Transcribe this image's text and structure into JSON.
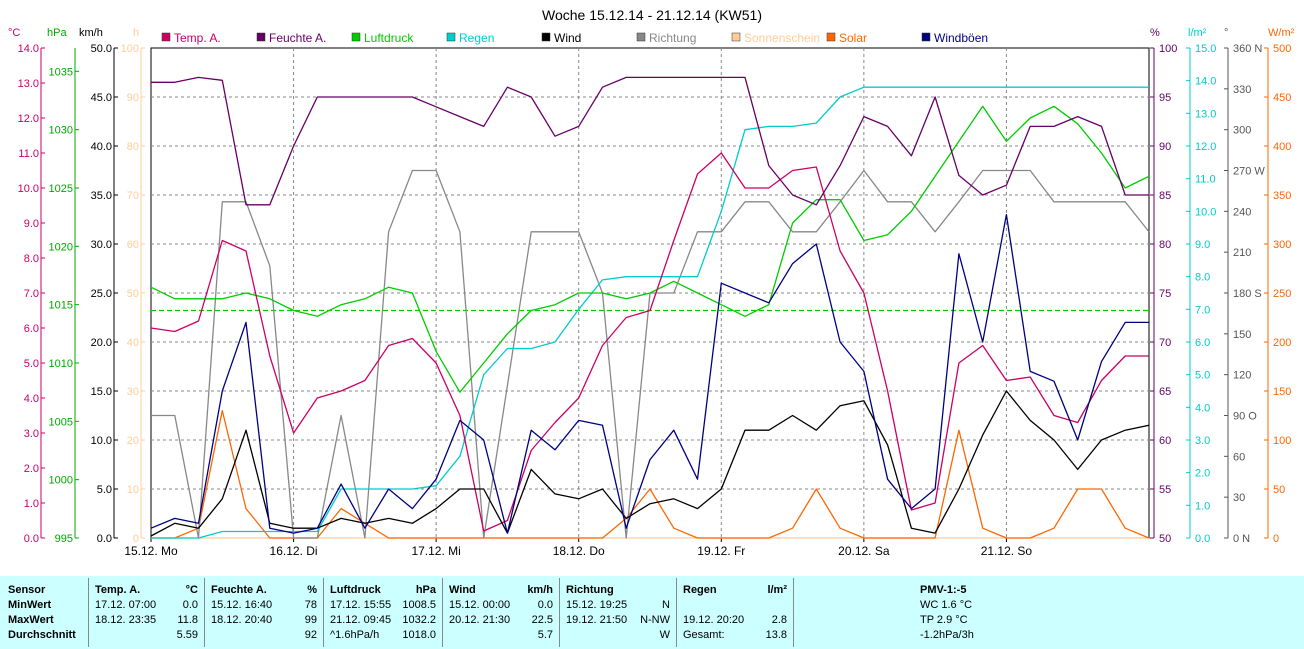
{
  "title": "Woche 15.12.14 - 21.12.14 (KW51)",
  "axes": {
    "left": [
      {
        "unit": "°C",
        "color": "#cc0066",
        "ticks": [
          "14.0",
          "13.0",
          "12.0",
          "11.0",
          "10.0",
          "9.0",
          "8.0",
          "7.0",
          "6.0",
          "5.0",
          "4.0",
          "3.0",
          "2.0",
          "1.0",
          "0.0"
        ]
      },
      {
        "unit": "hPa",
        "color": "#00aa00",
        "ticks": [
          "1035",
          "1030",
          "1025",
          "1020",
          "1015",
          "1010",
          "1005",
          "1000",
          "995"
        ]
      },
      {
        "unit": "km/h",
        "color": "#000000",
        "ticks": [
          "50.0",
          "45.0",
          "40.0",
          "35.0",
          "30.0",
          "25.0",
          "20.0",
          "15.0",
          "10.0",
          "5.0",
          "0.0"
        ]
      },
      {
        "unit": "h",
        "color": "#ffcc99",
        "ticks": [
          "100",
          "90",
          "80",
          "70",
          "60",
          "50",
          "40",
          "30",
          "20",
          "10",
          "0"
        ]
      }
    ],
    "right": [
      {
        "unit": "%",
        "color": "#660066",
        "ticks": [
          "100",
          "95",
          "90",
          "85",
          "80",
          "75",
          "70",
          "65",
          "60",
          "55",
          "50"
        ]
      },
      {
        "unit": "l/m²",
        "color": "#00cccc",
        "ticks": [
          "15.0",
          "14.0",
          "13.0",
          "12.0",
          "11.0",
          "10.0",
          "9.0",
          "8.0",
          "7.0",
          "6.0",
          "5.0",
          "4.0",
          "3.0",
          "2.0",
          "1.0",
          "0.0"
        ]
      },
      {
        "unit": "°",
        "color": "#555555",
        "ticks": [
          "360 N",
          "330",
          "300",
          "270 W",
          "240",
          "210",
          "180 S",
          "150",
          "120",
          "90 O",
          "60",
          "30",
          "0 N"
        ]
      },
      {
        "unit": "W/m²",
        "color": "#ff6600",
        "ticks": [
          "500",
          "450",
          "400",
          "350",
          "300",
          "250",
          "200",
          "150",
          "100",
          "50",
          "0"
        ]
      }
    ],
    "x_ticks": [
      "15.12. Mo",
      "16.12. Di",
      "17.12. Mi",
      "18.12. Do",
      "19.12. Fr",
      "20.12. Sa",
      "21.12. So"
    ]
  },
  "legend": [
    {
      "label": "Temp. A.",
      "color": "#cc0066"
    },
    {
      "label": "Feuchte A.",
      "color": "#660066"
    },
    {
      "label": "Luftdruck",
      "color": "#00cc00"
    },
    {
      "label": "Regen",
      "color": "#00cccc"
    },
    {
      "label": "Wind",
      "color": "#000000"
    },
    {
      "label": "Richtung",
      "color": "#888888"
    },
    {
      "label": "Sonnenschein",
      "color": "#ffcc99"
    },
    {
      "label": "Solar",
      "color": "#ff6600"
    },
    {
      "label": "Windböen",
      "color": "#000080"
    }
  ],
  "chart_data": {
    "type": "line",
    "title": "Woche 15.12.14 - 21.12.14 (KW51)",
    "x": [
      0,
      4,
      8,
      12,
      16,
      20,
      24,
      28,
      32,
      36,
      40,
      44,
      48,
      52,
      56,
      60,
      64,
      68,
      72,
      76,
      80,
      84,
      88,
      92,
      96,
      100,
      104,
      108,
      112,
      116,
      120,
      124,
      128,
      132,
      136,
      140,
      144,
      148,
      152,
      156,
      160,
      164,
      168
    ],
    "x_unit": "hours since 15.12. 00:00",
    "reference_line": {
      "name": "Luftdruck average",
      "value": 1014.5,
      "axis": "hPa",
      "color": "#00cc00"
    },
    "series": [
      {
        "name": "Temp. A.",
        "axis": "°C",
        "color": "#cc0066",
        "values": [
          6.0,
          5.9,
          6.2,
          8.5,
          8.2,
          5.2,
          3.0,
          4.0,
          4.2,
          4.5,
          5.5,
          5.7,
          5.0,
          3.5,
          0.2,
          0.5,
          2.5,
          3.3,
          4.0,
          5.5,
          6.3,
          6.5,
          8.5,
          10.4,
          11.0,
          10.0,
          10.0,
          10.5,
          10.6,
          8.2,
          7.0,
          4.2,
          0.8,
          1.0,
          5.0,
          5.5,
          4.5,
          4.6,
          3.5,
          3.3,
          4.5,
          5.2,
          5.2
        ]
      },
      {
        "name": "Feuchte A.",
        "axis": "%",
        "color": "#660066",
        "values": [
          96.5,
          96.5,
          97.0,
          96.7,
          84,
          84,
          90,
          95,
          95,
          95,
          95,
          95,
          94,
          93,
          92,
          96,
          95,
          91,
          92,
          96,
          97,
          97,
          97,
          97,
          97,
          97,
          88,
          85,
          84,
          88,
          93,
          92,
          89,
          95,
          87,
          85,
          86,
          92,
          92,
          93,
          92,
          85,
          85
        ]
      },
      {
        "name": "Luftdruck",
        "axis": "hPa",
        "color": "#00cc00",
        "values": [
          1016.5,
          1015.5,
          1015.5,
          1015.5,
          1016,
          1015.5,
          1014.5,
          1014,
          1015,
          1015.5,
          1016.5,
          1016,
          1011,
          1007.5,
          1010,
          1012.5,
          1014.5,
          1015,
          1016,
          1016,
          1015.5,
          1016,
          1017,
          1016,
          1015,
          1014,
          1015,
          1022,
          1024,
          1024,
          1020.5,
          1021,
          1023,
          1026,
          1029,
          1032,
          1029,
          1031,
          1032,
          1030.5,
          1028,
          1025,
          1026
        ]
      },
      {
        "name": "Regen",
        "axis": "l/m²",
        "color": "#00cccc",
        "values": [
          0,
          0,
          0,
          0.2,
          0.2,
          0.2,
          0.2,
          0.2,
          1.5,
          1.5,
          1.5,
          1.5,
          1.6,
          2.5,
          5.0,
          5.8,
          5.8,
          6.0,
          7.0,
          7.9,
          8.0,
          8.0,
          8.0,
          8.0,
          10.0,
          12.5,
          12.6,
          12.6,
          12.7,
          13.5,
          13.8,
          13.8,
          13.8,
          13.8,
          13.8,
          13.8,
          13.8,
          13.8,
          13.8,
          13.8,
          13.8,
          13.8,
          13.8
        ]
      },
      {
        "name": "Wind",
        "axis": "km/h",
        "color": "#000000",
        "values": [
          0.2,
          1.5,
          1.0,
          4.0,
          11.0,
          1.5,
          1.0,
          1.0,
          2.0,
          1.5,
          2.0,
          1.5,
          3.0,
          5.0,
          5.0,
          0.5,
          7.0,
          4.5,
          4.0,
          5.0,
          2.0,
          3.5,
          4.0,
          3.0,
          5.0,
          11.0,
          11.0,
          12.5,
          11.0,
          13.5,
          14.0,
          9.5,
          1.0,
          0.5,
          5.0,
          10.5,
          15.0,
          12.0,
          10.0,
          7.0,
          10.0,
          11.0,
          11.5
        ]
      },
      {
        "name": "Richtung",
        "axis": "°",
        "color": "#888888",
        "values": [
          90,
          90,
          0,
          247,
          247,
          200,
          0,
          0,
          90,
          0,
          225,
          270,
          270,
          225,
          0,
          112,
          225,
          225,
          225,
          180,
          0,
          180,
          180,
          225,
          225,
          247,
          247,
          225,
          225,
          247,
          270,
          247,
          247,
          225,
          247,
          270,
          270,
          270,
          247,
          247,
          247,
          247,
          225
        ]
      },
      {
        "name": "Sonnenschein",
        "axis": "h",
        "color": "#ffcc99",
        "values": [
          0,
          0,
          0,
          0,
          0,
          0,
          0,
          0,
          0,
          0,
          0,
          0,
          0,
          0,
          0,
          0,
          0,
          0,
          0,
          0,
          0,
          0,
          0,
          0,
          0,
          0,
          0,
          0,
          0,
          0,
          0,
          0,
          0,
          0,
          0,
          0,
          0,
          0,
          0,
          0,
          0,
          0,
          0
        ]
      },
      {
        "name": "Solar",
        "axis": "W/m²",
        "color": "#ff6600",
        "values": [
          0,
          0,
          10,
          130,
          30,
          0,
          0,
          0,
          30,
          15,
          0,
          0,
          0,
          0,
          0,
          0,
          0,
          0,
          0,
          0,
          20,
          50,
          10,
          0,
          0,
          0,
          0,
          10,
          50,
          10,
          0,
          0,
          0,
          0,
          110,
          10,
          0,
          0,
          10,
          50,
          50,
          10,
          0
        ]
      },
      {
        "name": "Windböen",
        "axis": "km/h",
        "color": "#000080",
        "values": [
          1.0,
          2.0,
          1.5,
          15.0,
          22.0,
          1.0,
          0.5,
          1.0,
          5.5,
          1.0,
          5.0,
          3.0,
          6.0,
          12.0,
          10.0,
          0.5,
          11.0,
          9.0,
          12.0,
          11.5,
          1.0,
          8.0,
          11.0,
          6.0,
          26.0,
          25.0,
          24.0,
          28.0,
          30.0,
          20.0,
          17.0,
          6.0,
          3.0,
          5.0,
          29.0,
          20.0,
          33.0,
          17.0,
          16.0,
          10.0,
          18.0,
          22.0,
          22.0
        ]
      }
    ]
  },
  "stats": {
    "headers": {
      "sensor": "Sensor",
      "minwert": "MinWert",
      "maxwert": "MaxWert",
      "durchschnitt": "Durchschnitt"
    },
    "temp": {
      "title": "Temp. A.",
      "unit": "°C",
      "min_time": "17.12.  07:00",
      "min": "0.0",
      "max_time": "18.12.  23:35",
      "max": "11.8",
      "avg": "5.59"
    },
    "feuchte": {
      "title": "Feuchte A.",
      "unit": "%",
      "min_time": "15.12.  16:40",
      "min": "78",
      "max_time": "18.12.  20:40",
      "max": "99",
      "avg": "92"
    },
    "luftdruck": {
      "title": "Luftdruck",
      "unit": "hPa",
      "min_time": "17.12.  15:55",
      "min": "1008.5",
      "max_time": "21.12.  09:45",
      "max": "1032.2",
      "avg_label": "^1.6hPa/h",
      "avg": "1018.0"
    },
    "wind": {
      "title": "Wind",
      "unit": "km/h",
      "min_time": "15.12.  00:00",
      "min": "0.0",
      "max_time": "20.12.  21:30",
      "max": "22.5",
      "avg": "5.7"
    },
    "richtung": {
      "title": "Richtung",
      "min_time": "15.12.  19:25",
      "min": "N",
      "max_time": "19.12.  21:50",
      "max": "N-NW",
      "avg": "W"
    },
    "regen": {
      "title": "Regen",
      "unit": "l/m²",
      "max_time": "19.12.  20:20",
      "max": "2.8",
      "total_label": "Gesamt:",
      "total": "13.8"
    },
    "pmv": {
      "title": "PMV-1:-5",
      "line1": "WC 1.6 °C",
      "line2": "TP 2.9 °C",
      "line3": "-1.2hPa/3h"
    }
  }
}
